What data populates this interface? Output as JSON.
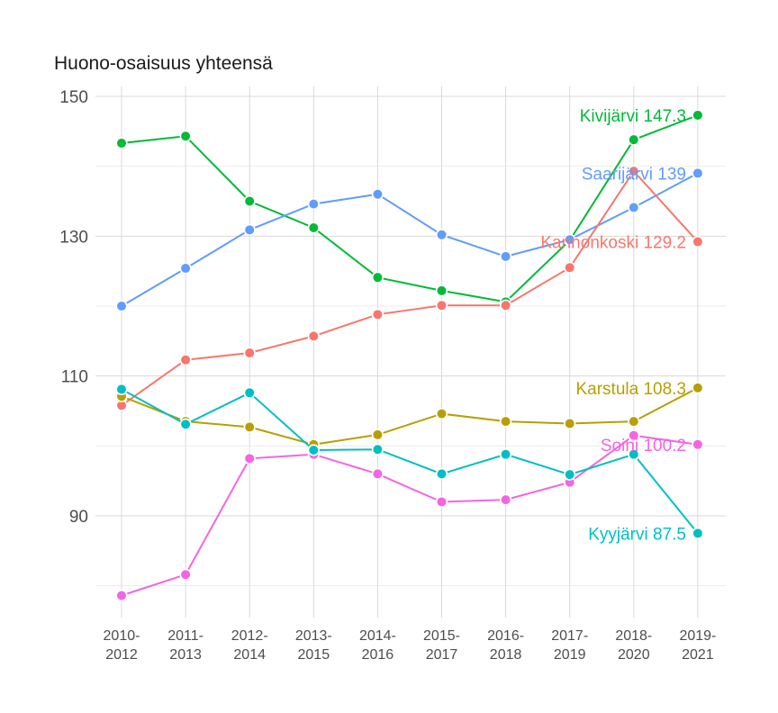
{
  "chart_data": {
    "type": "line",
    "title": "Huono-osaisuus yhteensä",
    "xlabel": "",
    "ylabel": "",
    "categories": [
      [
        "2010-",
        "2012"
      ],
      [
        "2011-",
        "2013"
      ],
      [
        "2012-",
        "2014"
      ],
      [
        "2013-",
        "2015"
      ],
      [
        "2014-",
        "2016"
      ],
      [
        "2015-",
        "2017"
      ],
      [
        "2016-",
        "2018"
      ],
      [
        "2017-",
        "2019"
      ],
      [
        "2018-",
        "2020"
      ],
      [
        "2019-",
        "2021"
      ]
    ],
    "y_ticks": [
      "90",
      "110",
      "130",
      "150"
    ],
    "ylim": [
      77,
      151
    ],
    "grid": true,
    "legend": "none",
    "series": [
      {
        "name": "Kivijärvi",
        "end_label": "Kivijärvi 147.3",
        "color": "#00ba38",
        "values": [
          143.3,
          144.3,
          135.0,
          131.2,
          124.1,
          122.2,
          120.6,
          129.4,
          143.8,
          147.3
        ]
      },
      {
        "name": "Saarijärvi",
        "end_label": "Saarijärvi 139",
        "color": "#619cff",
        "values": [
          120.0,
          125.4,
          130.9,
          134.6,
          136.0,
          130.2,
          127.1,
          129.5,
          134.1,
          139.0
        ]
      },
      {
        "name": "Kannonkoski",
        "end_label": "Kannonkoski 129.2",
        "color": "#f8766d",
        "values": [
          105.8,
          112.3,
          113.3,
          115.7,
          118.8,
          120.1,
          120.1,
          125.5,
          139.3,
          129.2
        ]
      },
      {
        "name": "Karstula",
        "end_label": "Karstula 108.3",
        "color": "#b79f00",
        "values": [
          107.1,
          103.5,
          102.7,
          100.2,
          101.6,
          104.6,
          103.5,
          103.2,
          103.5,
          108.3
        ]
      },
      {
        "name": "Soini",
        "end_label": "Soini 100.2",
        "color": "#f564e3",
        "values": [
          78.6,
          81.6,
          98.2,
          98.8,
          96.0,
          92.0,
          92.3,
          94.8,
          101.5,
          100.2
        ]
      },
      {
        "name": "Kyyjärvi",
        "end_label": "Kyyjärvi 87.5",
        "color": "#00bfc4",
        "values": [
          108.1,
          103.1,
          107.6,
          99.4,
          99.5,
          96.0,
          98.8,
          95.9,
          98.8,
          87.5
        ]
      }
    ]
  }
}
